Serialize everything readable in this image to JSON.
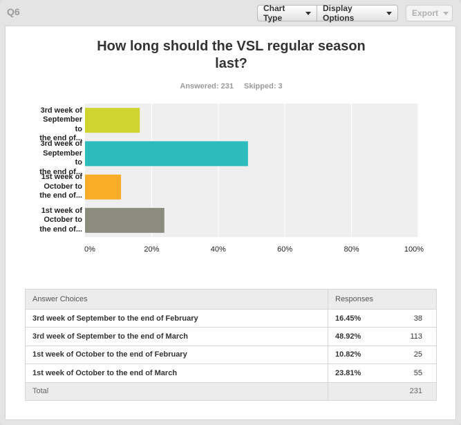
{
  "header": {
    "question_number": "Q6",
    "chart_type_label": "Chart Type",
    "display_options_label": "Display Options",
    "export_label": "Export"
  },
  "question": {
    "title": "How long should the VSL regular season last?",
    "answered": "Answered: 231",
    "skipped": "Skipped: 3"
  },
  "colors": {
    "bars": [
      "#cfd52e",
      "#2bbcbb",
      "#f8ac28",
      "#8b8c7d"
    ],
    "plot_bg": "#efefef",
    "grid": "#ffffff"
  },
  "chart_data": {
    "type": "bar",
    "orientation": "horizontal",
    "categories": [
      "3rd week of September to the end of...",
      "3rd week of September to the end of...",
      "1st week of October to the end of...",
      "1st week of October to the end of..."
    ],
    "category_lines": [
      [
        "3rd week of",
        "September to",
        "the end of..."
      ],
      [
        "3rd week of",
        "September to",
        "the end of..."
      ],
      [
        "1st week of",
        "October to",
        "the end of..."
      ],
      [
        "1st week of",
        "October to",
        "the end of..."
      ]
    ],
    "values": [
      16.45,
      48.92,
      10.82,
      23.81
    ],
    "xlim": [
      0,
      100
    ],
    "x_ticks": [
      "0%",
      "20%",
      "40%",
      "60%",
      "80%",
      "100%"
    ],
    "x_tick_values": [
      0,
      20,
      40,
      60,
      80,
      100
    ],
    "grid": true,
    "title": "How long should the VSL regular season last?"
  },
  "table": {
    "headers": {
      "choice": "Answer Choices",
      "responses": "Responses"
    },
    "rows": [
      {
        "choice": "3rd week of September to the end of February",
        "pct": "16.45%",
        "count": "38"
      },
      {
        "choice": "3rd week of September to the end of March",
        "pct": "48.92%",
        "count": "113"
      },
      {
        "choice": "1st week of October to the end of February",
        "pct": "10.82%",
        "count": "25"
      },
      {
        "choice": "1st week of October to the end of March",
        "pct": "23.81%",
        "count": "55"
      }
    ],
    "total": {
      "label": "Total",
      "count": "231"
    }
  }
}
